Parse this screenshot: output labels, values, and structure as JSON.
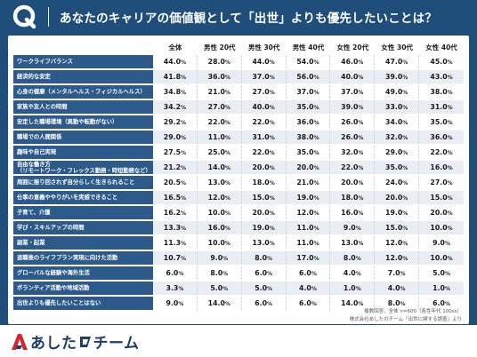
{
  "header": {
    "title": "あなたのキャリアの価値観として「出世」よりも優先したいことは？"
  },
  "table": {
    "columns": [
      "全体",
      "男性 20代",
      "男性 30代",
      "男性 40代",
      "女性 20代",
      "女性 30代",
      "女性 40代"
    ],
    "rows": [
      {
        "label": "ワークライフバランス",
        "values": [
          "44.0",
          "28.0",
          "44.0",
          "54.0",
          "46.0",
          "47.0",
          "45.0"
        ]
      },
      {
        "label": "経済的な安定",
        "values": [
          "41.8",
          "36.0",
          "37.0",
          "56.0",
          "40.0",
          "39.0",
          "43.0"
        ]
      },
      {
        "label": "心身の健康（メンタルヘルス・フィジカルヘルス）",
        "values": [
          "34.8",
          "21.0",
          "27.0",
          "37.0",
          "37.0",
          "49.0",
          "38.0"
        ]
      },
      {
        "label": "家族や友人との時間",
        "values": [
          "34.2",
          "27.0",
          "40.0",
          "35.0",
          "39.0",
          "33.0",
          "31.0"
        ]
      },
      {
        "label": "安定した職場環境（異動や転勤がない）",
        "values": [
          "29.2",
          "22.0",
          "22.0",
          "36.0",
          "26.0",
          "34.0",
          "35.0"
        ]
      },
      {
        "label": "職場での人間関係",
        "values": [
          "29.0",
          "11.0",
          "31.0",
          "38.0",
          "26.0",
          "32.0",
          "36.0"
        ]
      },
      {
        "label": "趣味や自己実現",
        "values": [
          "27.5",
          "25.0",
          "22.0",
          "35.0",
          "32.0",
          "29.0",
          "22.0"
        ]
      },
      {
        "label": "自由な働き方",
        "label2": "（リモートワーク・フレックス勤務・時短勤務など）",
        "values": [
          "21.2",
          "14.0",
          "20.0",
          "20.0",
          "22.0",
          "35.0",
          "16.0"
        ]
      },
      {
        "label": "周囲に振り回されず自分らしく生きられること",
        "values": [
          "20.5",
          "13.0",
          "18.0",
          "21.0",
          "20.0",
          "24.0",
          "27.0"
        ]
      },
      {
        "label": "仕事の意義ややりがいを実感できること",
        "values": [
          "16.5",
          "12.0",
          "15.0",
          "19.0",
          "18.0",
          "20.0",
          "15.0"
        ]
      },
      {
        "label": "子育て、介護",
        "values": [
          "16.2",
          "10.0",
          "20.0",
          "12.0",
          "16.0",
          "19.0",
          "20.0"
        ]
      },
      {
        "label": "学び・スキルアップの時間",
        "values": [
          "13.3",
          "16.0",
          "19.0",
          "11.0",
          "9.0",
          "15.0",
          "10.0"
        ]
      },
      {
        "label": "副業・起業",
        "values": [
          "11.3",
          "10.0",
          "13.0",
          "11.0",
          "13.0",
          "12.0",
          "9.0"
        ]
      },
      {
        "label": "退職後のライフプラン実現に向けた活動",
        "values": [
          "10.7",
          "9.0",
          "8.0",
          "17.0",
          "8.0",
          "12.0",
          "10.0"
        ]
      },
      {
        "label": "グローバルな経験や海外生活",
        "values": [
          "6.0",
          "8.0",
          "6.0",
          "6.0",
          "4.0",
          "7.0",
          "5.0"
        ]
      },
      {
        "label": "ボランティア活動や地域活動",
        "values": [
          "3.3",
          "5.0",
          "5.0",
          "4.0",
          "1.0",
          "4.0",
          "1.0"
        ]
      },
      {
        "label": "出世よりも優先したいことはない",
        "values": [
          "9.0",
          "14.0",
          "6.0",
          "6.0",
          "14.0",
          "8.0",
          "6.0"
        ]
      }
    ],
    "unit": "%"
  },
  "notes": {
    "line1": "複数回答、全体 n=600（各性年代 100ss）",
    "line2": "株式会社あしたのチーム「出世に関する調査」より"
  },
  "brand": {
    "text": "あした",
    "text2": "チーム"
  },
  "colors": {
    "background": "#1f4e7a",
    "label_cell": "#2c5a8a",
    "brand_red": "#d7262c",
    "brand_navy": "#1e3f66"
  }
}
